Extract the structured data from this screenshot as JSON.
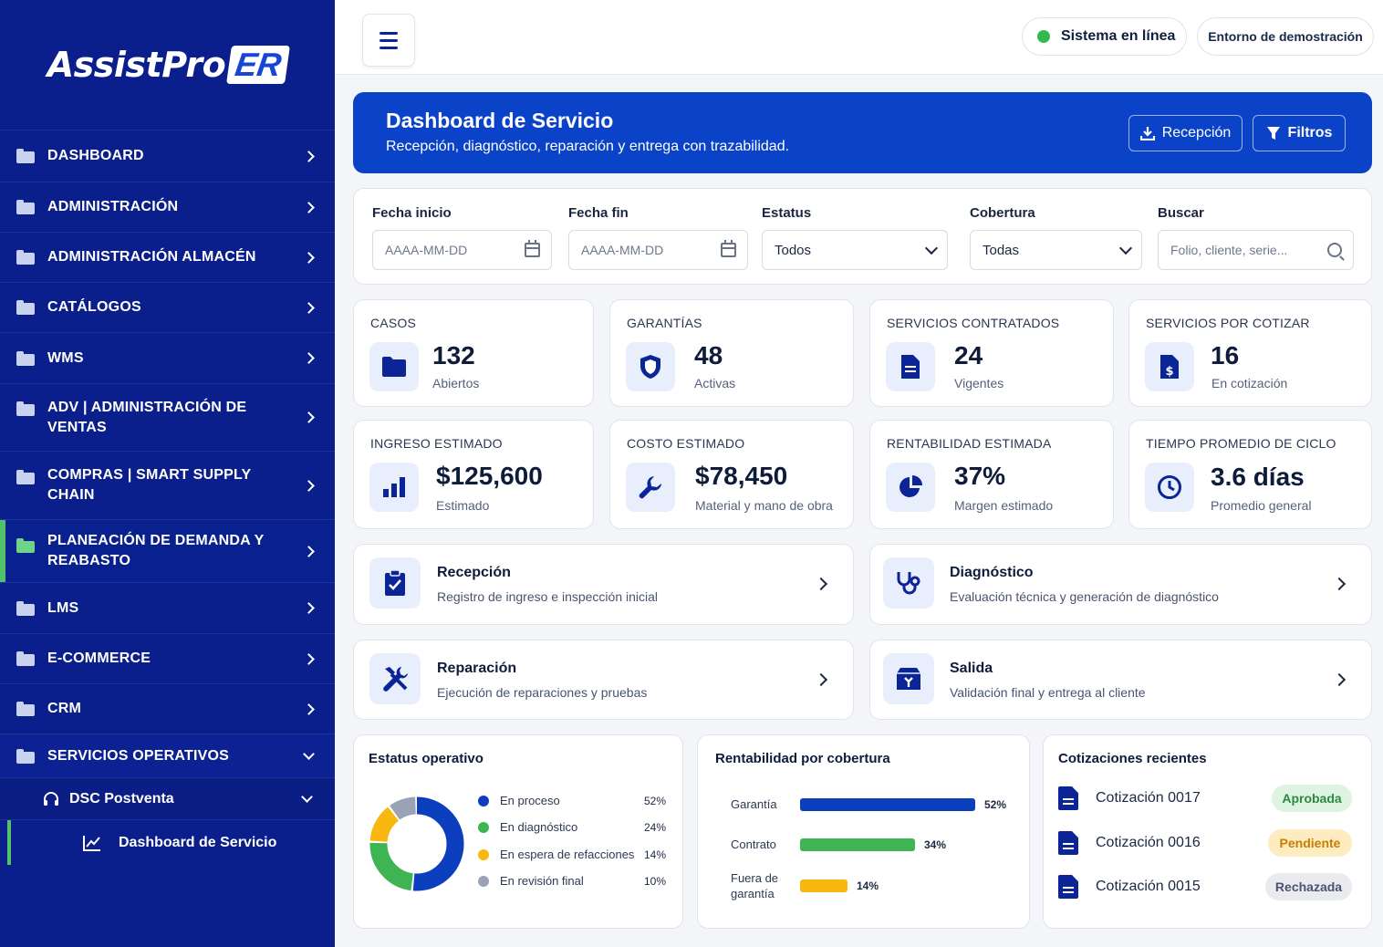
{
  "brand": {
    "name": "AssistPro",
    "badge": "ER"
  },
  "sidebar": {
    "items": [
      {
        "label": "DASHBOARD"
      },
      {
        "label": "ADMINISTRACIÓN"
      },
      {
        "label": "ADMINISTRACIÓN ALMACÉN"
      },
      {
        "label": "CATÁLOGOS"
      },
      {
        "label": "WMS"
      },
      {
        "label": "ADV | ADMINISTRACIÓN DE VENTAS"
      },
      {
        "label": "COMPRAS | SMART SUPPLY CHAIN"
      },
      {
        "label": "PLANEACIÓN DE DEMANDA Y REABASTO"
      },
      {
        "label": "LMS"
      },
      {
        "label": "E-COMMERCE"
      },
      {
        "label": "CRM"
      },
      {
        "label": "SERVICIOS OPERATIVOS"
      }
    ],
    "sub_item": "DSC Postventa",
    "sub_sub_item": "Dashboard de Servicio"
  },
  "topbar": {
    "status": "Sistema en línea",
    "env": "Entorno de demostración"
  },
  "hero": {
    "title": "Dashboard de Servicio",
    "subtitle": "Recepción, diagnóstico, reparación y entrega con trazabilidad.",
    "btn_reception": "Recepción",
    "btn_filters": "Filtros"
  },
  "filters": {
    "start_label": "Fecha inicio",
    "start_placeholder": "AAAA-MM-DD",
    "end_label": "Fecha fin",
    "end_placeholder": "AAAA-MM-DD",
    "status_label": "Estatus",
    "status_value": "Todos",
    "coverage_label": "Cobertura",
    "coverage_value": "Todas",
    "search_label": "Buscar",
    "search_placeholder": "Folio, cliente, serie..."
  },
  "stats": [
    {
      "title": "CASOS",
      "value": "132",
      "sub": "Abiertos"
    },
    {
      "title": "GARANTÍAS",
      "value": "48",
      "sub": "Activas"
    },
    {
      "title": "SERVICIOS CONTRATADOS",
      "value": "24",
      "sub": "Vigentes"
    },
    {
      "title": "SERVICIOS POR COTIZAR",
      "value": "16",
      "sub": "En cotización"
    },
    {
      "title": "INGRESO ESTIMADO",
      "value": "$125,600",
      "sub": "Estimado"
    },
    {
      "title": "COSTO ESTIMADO",
      "value": "$78,450",
      "sub": "Material y mano de obra"
    },
    {
      "title": "RENTABILIDAD ESTIMADA",
      "value": "37%",
      "sub": "Margen estimado"
    },
    {
      "title": "TIEMPO PROMEDIO DE CICLO",
      "value": "3.6 días",
      "sub": "Promedio general"
    }
  ],
  "processes": [
    {
      "title": "Recepción",
      "desc": "Registro de ingreso e inspección inicial"
    },
    {
      "title": "Diagnóstico",
      "desc": "Evaluación técnica y generación de diagnóstico"
    },
    {
      "title": "Reparación",
      "desc": "Ejecución de reparaciones y pruebas"
    },
    {
      "title": "Salida",
      "desc": "Validación final y entrega al cliente"
    }
  ],
  "status_panel": {
    "title": "Estatus operativo",
    "items": [
      {
        "label": "En proceso",
        "pct": "52%",
        "value": 52,
        "color": "#0b3fbd"
      },
      {
        "label": "En diagnóstico",
        "pct": "24%",
        "value": 24,
        "color": "#3fb452"
      },
      {
        "label": "En espera de refacciones",
        "pct": "14%",
        "value": 14,
        "color": "#f9b810"
      },
      {
        "label": "En revisión final",
        "pct": "10%",
        "value": 10,
        "color": "#9aa3b5"
      }
    ]
  },
  "coverage_panel": {
    "title": "Rentabilidad por cobertura",
    "items": [
      {
        "label": "Garantía",
        "pct": "52%",
        "value": 52,
        "color": "#0b3fbd"
      },
      {
        "label": "Contrato",
        "pct": "34%",
        "value": 34,
        "color": "#3fb452"
      },
      {
        "label": "Fuera de garantía",
        "pct": "14%",
        "value": 14,
        "color": "#f9b810"
      }
    ]
  },
  "quotes_panel": {
    "title": "Cotizaciones recientes",
    "items": [
      {
        "name": "Cotización 0017",
        "status": "Aprobada",
        "bg": "#dff3e2",
        "fg": "#2c8a3e"
      },
      {
        "name": "Cotización 0016",
        "status": "Pendiente",
        "bg": "#fdecc0",
        "fg": "#c97d00"
      },
      {
        "name": "Cotización 0015",
        "status": "Rechazada",
        "bg": "#e9ebef",
        "fg": "#4a5470"
      }
    ]
  },
  "colors": {
    "sidebar": "#0a1e8c",
    "accent": "#0b43c8",
    "active_indicator": "#4fc26b"
  }
}
